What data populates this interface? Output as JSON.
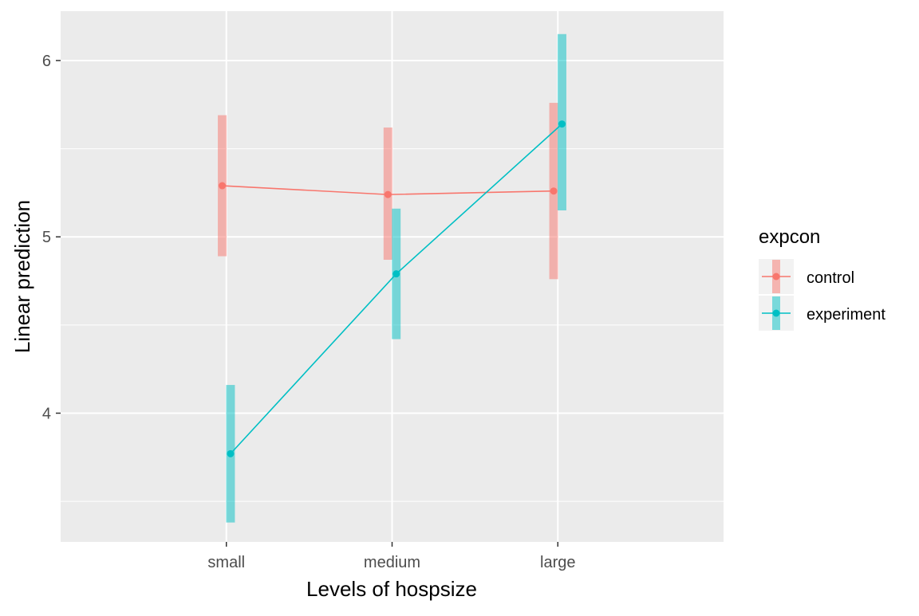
{
  "chart_data": {
    "type": "line",
    "title": "",
    "xlabel": "Levels of hospsize",
    "ylabel": "Linear prediction",
    "categories": [
      "small",
      "medium",
      "large"
    ],
    "ylim": [
      3.27,
      6.28
    ],
    "yticks": [
      4,
      5,
      6
    ],
    "grid": true,
    "legend": {
      "title": "expcon",
      "position": "right"
    },
    "series": [
      {
        "name": "control",
        "color": "#F8766D",
        "values": [
          5.29,
          5.24,
          5.26
        ],
        "ci_low": [
          4.89,
          4.87,
          4.76
        ],
        "ci_high": [
          5.69,
          5.62,
          5.76
        ]
      },
      {
        "name": "experiment",
        "color": "#00BFC4",
        "values": [
          3.77,
          4.79,
          5.64
        ],
        "ci_low": [
          3.38,
          4.42,
          5.15
        ],
        "ci_high": [
          4.16,
          5.16,
          6.15
        ]
      }
    ]
  }
}
